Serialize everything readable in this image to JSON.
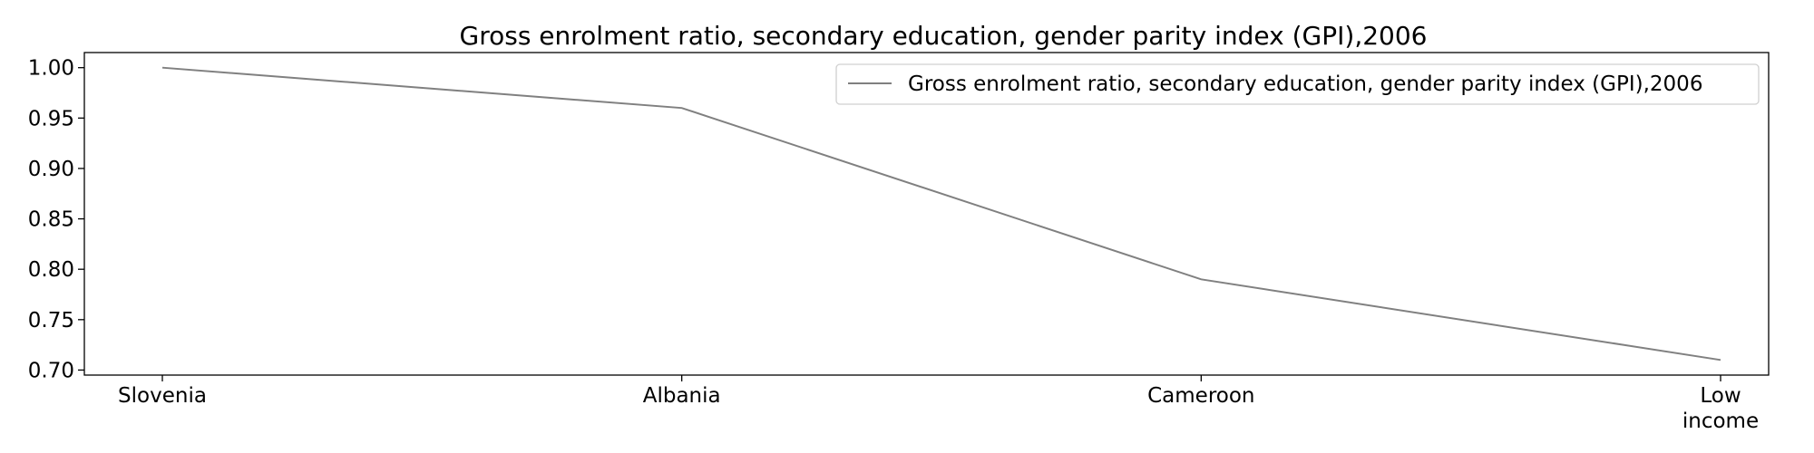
{
  "chart_data": {
    "type": "line",
    "title": "Gross enrolment ratio, secondary education, gender parity index (GPI),2006",
    "xlabel": "",
    "ylabel": "",
    "categories": [
      "Slovenia",
      "Albania",
      "Cameroon",
      "Low income"
    ],
    "series": [
      {
        "name": "Gross enrolment ratio, secondary education, gender parity index (GPI),2006",
        "values": [
          1.0,
          0.96,
          0.79,
          0.71
        ],
        "color": "#808080"
      }
    ],
    "ylim": [
      0.695,
      1.015
    ],
    "yticks": [
      "0.70",
      "0.75",
      "0.80",
      "0.85",
      "0.90",
      "0.95",
      "1.00"
    ],
    "grid": false,
    "legend_position": "top-right"
  }
}
